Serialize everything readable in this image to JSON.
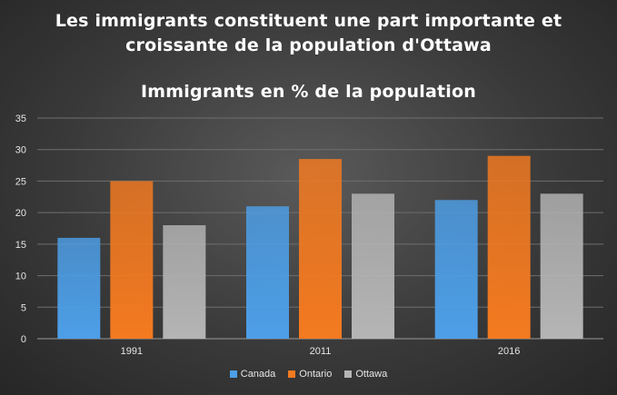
{
  "chart_data": {
    "type": "bar",
    "title_lines": [
      "Les immigrants  constituent  une part  importante  et",
      "croissante  de la  population  d'Ottawa"
    ],
    "subtitle": "Immigrants  en % de la  population",
    "categories": [
      "1991",
      "2011",
      "2016"
    ],
    "series": [
      {
        "name": "Canada",
        "values": [
          16,
          21,
          22
        ],
        "color": "#4d9fe8"
      },
      {
        "name": "Ontario",
        "values": [
          25,
          28.5,
          29
        ],
        "color": "#f47a20"
      },
      {
        "name": "Ottawa",
        "values": [
          18,
          23,
          23
        ],
        "color": "#b5b5b5"
      }
    ],
    "ylim": [
      0,
      35
    ],
    "yticks": [
      "0",
      "5",
      "10",
      "15",
      "20",
      "25",
      "30",
      "35"
    ],
    "grid": true,
    "legend_position": "bottom"
  }
}
